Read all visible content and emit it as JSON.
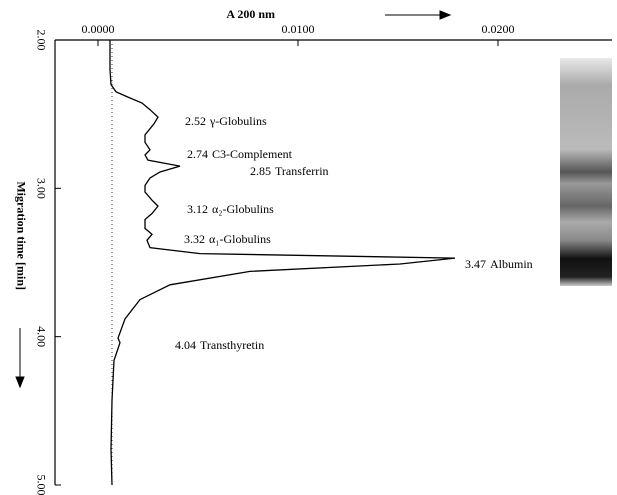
{
  "chart_data": {
    "type": "line",
    "xlabel": "A 200 nm",
    "ylabel": "Migration time [min]",
    "xlim": [
      -0.00215,
      0.0257
    ],
    "xticks": [
      {
        "value": 0,
        "label": "0.0000"
      },
      {
        "value": 0.01,
        "label": "0.0100"
      },
      {
        "value": 0.02,
        "label": "0.0200"
      }
    ],
    "ylim": [
      2,
      5
    ],
    "yticks": [
      {
        "value": 2,
        "label": "2.00"
      },
      {
        "value": 3,
        "label": "3.00"
      },
      {
        "value": 4,
        "label": "4.00"
      },
      {
        "value": 5,
        "label": "5.00"
      }
    ],
    "color": "#000000",
    "series": [
      {
        "y": [
          2.0,
          2.2,
          2.3,
          2.35,
          2.385,
          2.425,
          2.47,
          2.52,
          2.565,
          2.64,
          2.69,
          2.74,
          2.775,
          2.81,
          2.85,
          2.89,
          2.93,
          2.98,
          3.025,
          3.08,
          3.12,
          3.17,
          3.21,
          3.27,
          3.31,
          3.35,
          3.4,
          3.44,
          3.47,
          3.51,
          3.56,
          3.65,
          3.75,
          3.88,
          4.01,
          4.04,
          4.16,
          4.43,
          4.76,
          5.0
        ],
        "values": [
          0.0006,
          0.0006,
          0.00065,
          0.0009,
          0.0015,
          0.0022,
          0.0026,
          0.003,
          0.0028,
          0.00235,
          0.00235,
          0.0026,
          0.00235,
          0.0025,
          0.0041,
          0.0031,
          0.0026,
          0.00235,
          0.00235,
          0.0027,
          0.003,
          0.0027,
          0.00235,
          0.00235,
          0.0027,
          0.00245,
          0.0026,
          0.0051,
          0.01785,
          0.0151,
          0.0076,
          0.0036,
          0.0021,
          0.00135,
          0.001,
          0.0011,
          0.0008,
          0.0007,
          0.00065,
          0.0007
        ]
      }
    ],
    "annotations": [
      {
        "time": 2.52,
        "name": "γ-Globulins"
      },
      {
        "time": 2.74,
        "name": "C3-Complement"
      },
      {
        "time": 2.85,
        "name": "Transferrin"
      },
      {
        "time": 3.12,
        "name": "α₂-Globulins"
      },
      {
        "time": 3.32,
        "name": "α₁-Globulins"
      },
      {
        "time": 3.47,
        "name": "Albumin"
      },
      {
        "time": 4.04,
        "name": "Transthyretin"
      }
    ]
  }
}
